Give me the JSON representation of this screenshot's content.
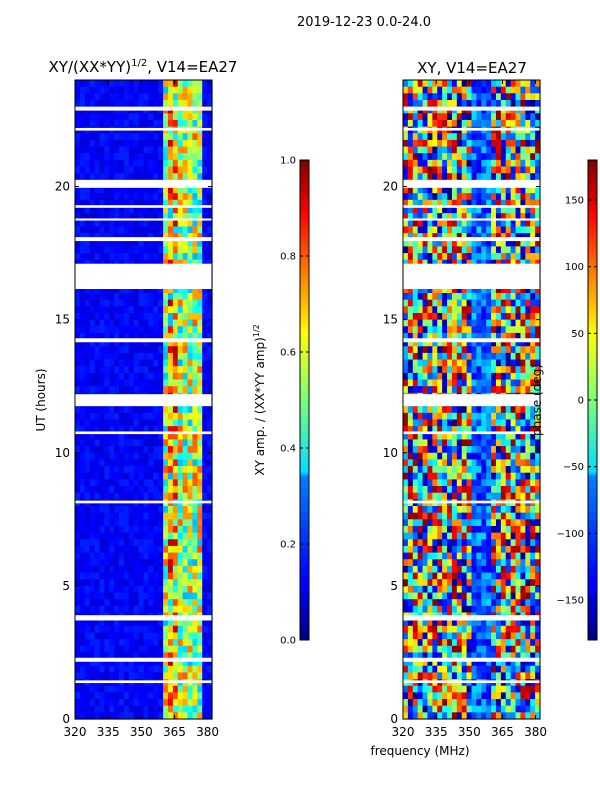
{
  "figure": {
    "suptitle": "2019-12-23 0.0-24.0",
    "shared_xlabel": "frequency (MHz)"
  },
  "chart_data": [
    {
      "type": "heatmap",
      "title_main": "XY/(XX*YY)",
      "title_exp": "1/2",
      "title_rest": ", V14=EA27",
      "xlabel": "frequency (MHz)",
      "ylabel": "UT (hours)",
      "xlim": [
        320,
        382
      ],
      "ylim": [
        0,
        24
      ],
      "xticks": [
        320,
        335,
        350,
        365,
        380
      ],
      "yticks": [
        0,
        5,
        10,
        15,
        20
      ],
      "xtick_labels": [
        "320",
        "335",
        "350",
        "365",
        "380"
      ],
      "ytick_labels": [
        "0",
        "5",
        "10",
        "15",
        "20"
      ],
      "colorbar": {
        "label_main": "XY amp. / (XX*YY amp)",
        "label_exp": "1/2",
        "range": [
          0.0,
          1.0
        ],
        "ticks": [
          0.0,
          0.2,
          0.4,
          0.6,
          0.8,
          1.0
        ],
        "tick_labels": [
          "0.0",
          "0.2",
          "0.4",
          "0.6",
          "0.8",
          "1.0"
        ],
        "colormap": "jet"
      },
      "gaps_ut": [
        [
          17.1,
          16.15
        ],
        [
          23.0,
          22.85
        ],
        [
          22.2,
          22.1
        ],
        [
          20.25,
          19.95
        ],
        [
          19.3,
          19.2
        ],
        [
          18.8,
          18.72
        ],
        [
          18.1,
          17.95
        ],
        [
          14.3,
          14.15
        ],
        [
          12.2,
          11.75
        ],
        [
          10.8,
          10.7
        ],
        [
          8.2,
          8.1
        ],
        [
          3.9,
          3.7
        ],
        [
          2.3,
          2.15
        ],
        [
          1.45,
          1.35
        ]
      ]
    },
    {
      "type": "heatmap",
      "title_main": "XY, V14=EA27",
      "xlabel": "frequency (MHz)",
      "ylabel": "",
      "xlim": [
        320,
        382
      ],
      "ylim": [
        0,
        24
      ],
      "xticks": [
        320,
        335,
        350,
        365,
        380
      ],
      "yticks": [
        0,
        5,
        10,
        15,
        20
      ],
      "xtick_labels": [
        "320",
        "335",
        "350",
        "365",
        "380"
      ],
      "ytick_labels": [
        "0",
        "5",
        "10",
        "15",
        "20"
      ],
      "colorbar": {
        "label_main": "phase (deg)",
        "range": [
          -180,
          180
        ],
        "ticks": [
          -150,
          -100,
          -50,
          0,
          50,
          100,
          150
        ],
        "tick_labels": [
          "−150",
          "−100",
          "−50",
          "0",
          "50",
          "100",
          "150"
        ],
        "colormap": "jet"
      },
      "gaps_ut": [
        [
          17.1,
          16.15
        ],
        [
          23.0,
          22.85
        ],
        [
          22.2,
          22.1
        ],
        [
          20.25,
          19.95
        ],
        [
          19.3,
          19.2
        ],
        [
          18.8,
          18.72
        ],
        [
          18.1,
          17.95
        ],
        [
          14.3,
          14.15
        ],
        [
          12.2,
          11.75
        ],
        [
          10.8,
          10.7
        ],
        [
          8.2,
          8.1
        ],
        [
          3.9,
          3.7
        ],
        [
          2.3,
          2.15
        ],
        [
          1.45,
          1.35
        ]
      ]
    }
  ]
}
